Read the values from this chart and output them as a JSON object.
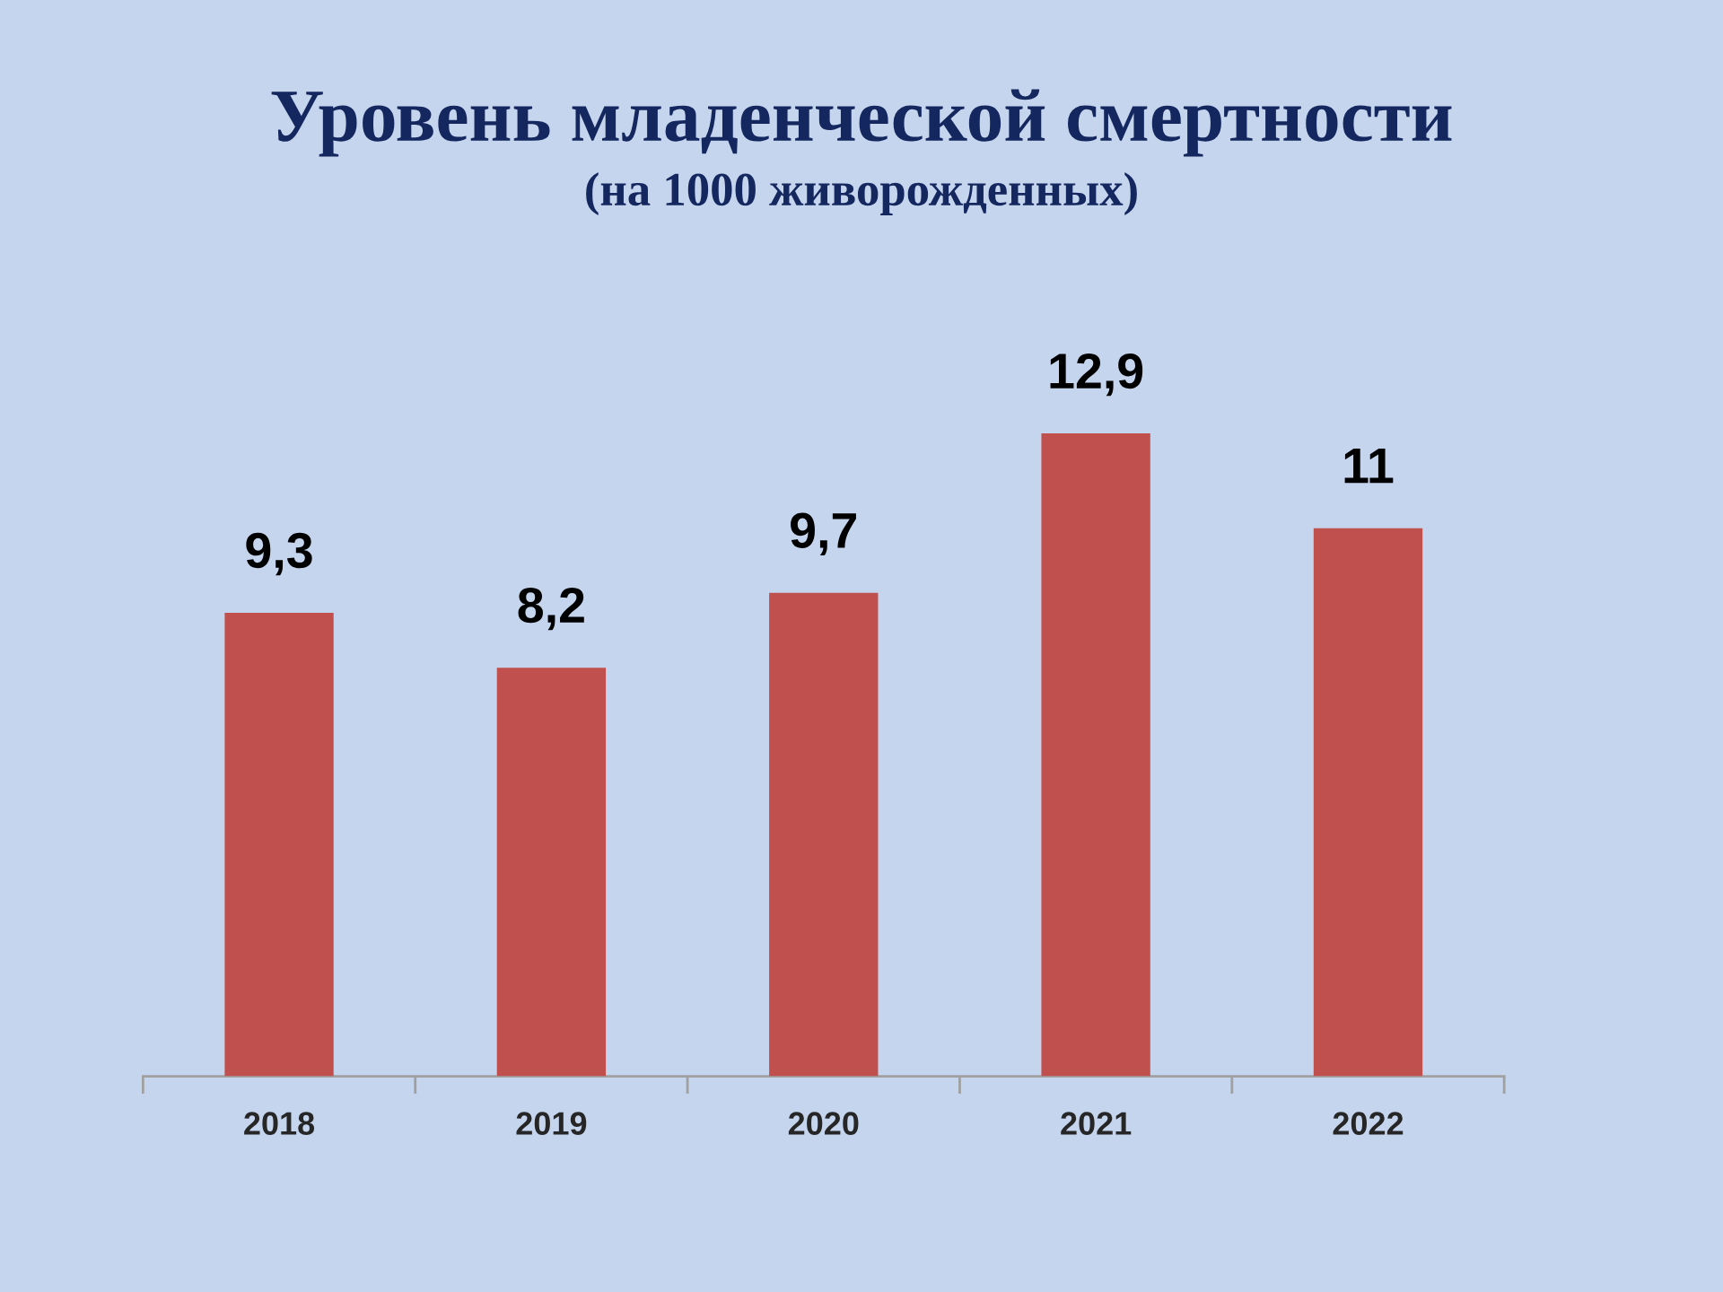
{
  "chart_data": {
    "type": "bar",
    "title": "Уровень младенческой смертности",
    "subtitle": "(на 1000 живорожденных)",
    "categories": [
      "2018",
      "2019",
      "2020",
      "2021",
      "2022"
    ],
    "values": [
      9.3,
      8.2,
      9.7,
      12.9,
      11
    ],
    "value_labels": [
      "9,3",
      "8,2",
      "9,7",
      "12,9",
      "11"
    ],
    "color": "#c0504d",
    "tick_labels": "x",
    "grid": false,
    "legend": false
  }
}
